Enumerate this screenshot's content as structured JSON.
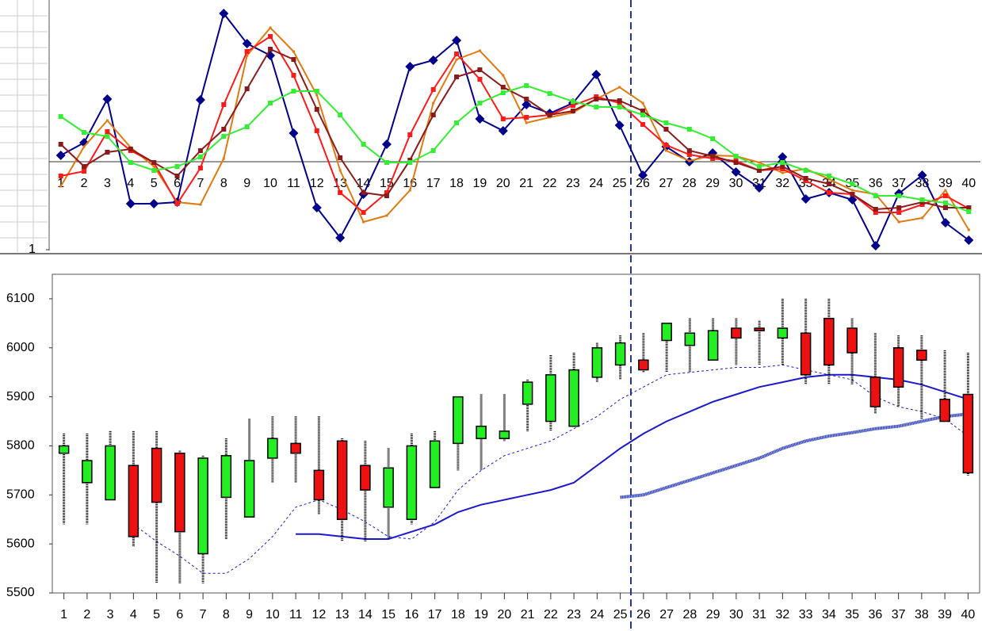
{
  "chart_data": [
    {
      "type": "line",
      "categories": [
        "1",
        "2",
        "3",
        "4",
        "5",
        "6",
        "7",
        "8",
        "9",
        "10",
        "11",
        "12",
        "13",
        "14",
        "15",
        "16",
        "17",
        "18",
        "19",
        "20",
        "21",
        "22",
        "23",
        "24",
        "25",
        "26",
        "27",
        "28",
        "29",
        "30",
        "31",
        "32",
        "33",
        "34",
        "35",
        "36",
        "37",
        "38",
        "39",
        "40"
      ],
      "ylim": [
        1,
        316
      ],
      "yticks": [
        1
      ],
      "xaxis_at": 112,
      "series": [
        {
          "color": "#00008b",
          "marker": "diamond",
          "values": [
            120,
            136,
            191,
            59,
            59,
            61,
            190,
            299,
            261,
            246,
            148,
            54,
            16,
            71,
            134,
            232,
            240,
            265,
            166,
            151,
            184,
            173,
            186,
            222,
            158,
            95,
            131,
            112,
            123,
            99,
            79,
            118,
            65,
            73,
            64,
            6,
            72,
            95,
            35,
            13
          ]
        },
        {
          "color": "#e07a10",
          "marker": "dot",
          "values": [
            81,
            131,
            164,
            130,
            106,
            61,
            58,
            116,
            246,
            281,
            251,
            196,
            101,
            36,
            44,
            76,
            186,
            241,
            252,
            221,
            161,
            168,
            174,
            191,
            206,
            186,
            126,
            113,
            120,
            119,
            111,
            98,
            103,
            90,
            76,
            71,
            36,
            41,
            76,
            26
          ]
        },
        {
          "color": "#ff1a1a",
          "marker": "square",
          "values": [
            94,
            100,
            150,
            126,
            111,
            59,
            104,
            184,
            251,
            270,
            221,
            151,
            73,
            48,
            73,
            146,
            203,
            248,
            216,
            166,
            168,
            171,
            183,
            194,
            186,
            159,
            133,
            121,
            116,
            113,
            101,
            103,
            88,
            73,
            71,
            48,
            48,
            58,
            69,
            53
          ]
        },
        {
          "color": "#8b1a1a",
          "marker": "square",
          "values": [
            134,
            106,
            124,
            128,
            111,
            94,
            126,
            153,
            204,
            254,
            241,
            178,
            117,
            73,
            69,
            114,
            171,
            219,
            228,
            206,
            191,
            171,
            176,
            191,
            189,
            176,
            153,
            126,
            119,
            111,
            101,
            106,
            91,
            84,
            71,
            52,
            54,
            61,
            54,
            54
          ]
        },
        {
          "color": "#33ee33",
          "marker": "square",
          "values": [
            169,
            149,
            144,
            111,
            101,
            106,
            118,
            144,
            156,
            186,
            201,
            201,
            171,
            134,
            111,
            111,
            126,
            161,
            186,
            199,
            208,
            198,
            188,
            181,
            181,
            171,
            161,
            153,
            141,
            119,
            106,
            111,
            101,
            94,
            84,
            69,
            69,
            64,
            60,
            49
          ]
        }
      ]
    },
    {
      "type": "candlestick",
      "categories": [
        "1",
        "2",
        "3",
        "4",
        "5",
        "6",
        "7",
        "8",
        "9",
        "10",
        "11",
        "12",
        "13",
        "14",
        "15",
        "16",
        "17",
        "18",
        "19",
        "20",
        "21",
        "22",
        "23",
        "24",
        "25",
        "26",
        "27",
        "28",
        "29",
        "30",
        "31",
        "32",
        "33",
        "34",
        "35",
        "36",
        "37",
        "38",
        "39",
        "40"
      ],
      "ylim": [
        5500,
        6150
      ],
      "yticks": [
        5500,
        5600,
        5700,
        5800,
        5900,
        6000,
        6100
      ],
      "up_color": "#22ee22",
      "down_color": "#ee1111",
      "open": [
        5785,
        5725,
        5690,
        5760,
        5795,
        5785,
        5580,
        5695,
        5655,
        5775,
        5805,
        5750,
        5810,
        5760,
        5675,
        5650,
        5715,
        5805,
        5815,
        5815,
        5885,
        5850,
        5840,
        5940,
        5965,
        5975,
        6015,
        6005,
        5975,
        6040,
        6040,
        6020,
        6030,
        6060,
        6040,
        5940,
        6000,
        5995,
        5895,
        5905
      ],
      "high": [
        5825,
        5825,
        5830,
        5830,
        5830,
        5790,
        5780,
        5815,
        5855,
        5860,
        5860,
        5860,
        5815,
        5810,
        5795,
        5825,
        5830,
        5900,
        5905,
        5905,
        5935,
        5985,
        5990,
        6010,
        6025,
        6030,
        6050,
        6060,
        6060,
        6060,
        6055,
        6100,
        6100,
        6100,
        6060,
        6030,
        6025,
        6025,
        5995,
        5990
      ],
      "low": [
        5640,
        5640,
        5690,
        5595,
        5520,
        5520,
        5520,
        5610,
        5655,
        5725,
        5725,
        5660,
        5605,
        5605,
        5610,
        5640,
        5715,
        5750,
        5750,
        5810,
        5830,
        5830,
        5840,
        5930,
        5935,
        5950,
        5950,
        5950,
        5975,
        5965,
        5965,
        5965,
        5925,
        5925,
        5925,
        5865,
        5880,
        5855,
        5850,
        5740
      ],
      "close": [
        5800,
        5770,
        5800,
        5615,
        5685,
        5625,
        5775,
        5780,
        5770,
        5815,
        5785,
        5690,
        5650,
        5710,
        5755,
        5800,
        5810,
        5900,
        5840,
        5830,
        5930,
        5945,
        5955,
        6000,
        6010,
        5955,
        6050,
        6030,
        6035,
        6020,
        6035,
        6040,
        5945,
        5965,
        5990,
        5880,
        5920,
        5975,
        5850,
        5745
      ],
      "lines": [
        {
          "color": "#1a1acc",
          "style": "dotted",
          "values": [
            null,
            null,
            null,
            5640,
            5605,
            5575,
            5540,
            5540,
            5570,
            5615,
            5675,
            5690,
            5670,
            5645,
            5615,
            5610,
            5645,
            5710,
            5750,
            5780,
            5795,
            5810,
            5835,
            5860,
            5895,
            5920,
            5945,
            5950,
            5955,
            5960,
            5960,
            5965,
            5955,
            5945,
            5935,
            5900,
            5880,
            5870,
            5855,
            5820
          ]
        },
        {
          "color": "#1a1acc",
          "style": "solid",
          "values": [
            null,
            null,
            null,
            null,
            null,
            null,
            null,
            null,
            null,
            null,
            5620,
            5620,
            5615,
            5610,
            5610,
            5625,
            5640,
            5665,
            5680,
            5690,
            5700,
            5710,
            5725,
            5760,
            5795,
            5825,
            5850,
            5870,
            5890,
            5905,
            5920,
            5930,
            5940,
            5945,
            5945,
            5940,
            5935,
            5925,
            5910,
            5895
          ]
        },
        {
          "color": "#3344bb",
          "style": "thick",
          "values": [
            null,
            null,
            null,
            null,
            null,
            null,
            null,
            null,
            null,
            null,
            null,
            null,
            null,
            null,
            null,
            null,
            null,
            null,
            null,
            null,
            null,
            null,
            null,
            null,
            5695,
            5700,
            5715,
            5730,
            5745,
            5760,
            5775,
            5795,
            5810,
            5820,
            5827,
            5835,
            5840,
            5850,
            5860,
            5865
          ]
        }
      ]
    }
  ]
}
